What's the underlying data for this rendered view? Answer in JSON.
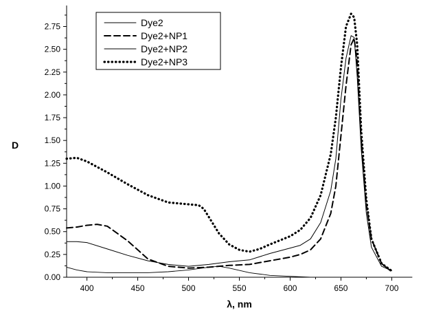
{
  "chart_data": {
    "type": "line",
    "title": "",
    "xlabel": "λ, nm",
    "ylabel": "D",
    "xlim": [
      380,
      720
    ],
    "ylim": [
      0,
      2.95
    ],
    "x_ticks": [
      400,
      450,
      500,
      550,
      600,
      650,
      700
    ],
    "y_ticks": [
      0.0,
      0.25,
      0.5,
      0.75,
      1.0,
      1.25,
      1.5,
      1.75,
      2.0,
      2.25,
      2.5,
      2.75
    ],
    "y_tick_labels": [
      "0.00",
      "0.25",
      "0.50",
      "0.75",
      "1.00",
      "1.25",
      "1.50",
      "1.75",
      "2.00",
      "2.25",
      "2.50",
      "2.75"
    ],
    "grid": false,
    "legend_position": "top-left",
    "series": [
      {
        "name": "Dye2",
        "style": "solid",
        "x": [
          380,
          390,
          400,
          420,
          440,
          460,
          480,
          500,
          520,
          530,
          540,
          560,
          580,
          600,
          620,
          640,
          660,
          680,
          700,
          720
        ],
        "y": [
          0.11,
          0.08,
          0.06,
          0.05,
          0.05,
          0.05,
          0.06,
          0.08,
          0.11,
          0.12,
          0.1,
          0.05,
          0.02,
          0.01,
          0.0,
          0.0,
          0.0,
          0.0,
          0.0,
          0.0
        ]
      },
      {
        "name": "Dye2+NP1",
        "style": "dash",
        "x": [
          380,
          390,
          400,
          410,
          420,
          440,
          460,
          480,
          500,
          520,
          540,
          560,
          580,
          600,
          610,
          620,
          630,
          640,
          645,
          650,
          655,
          660,
          663,
          666,
          670,
          675,
          680,
          690,
          700
        ],
        "y": [
          0.54,
          0.55,
          0.57,
          0.58,
          0.56,
          0.4,
          0.2,
          0.12,
          0.1,
          0.11,
          0.13,
          0.14,
          0.18,
          0.22,
          0.25,
          0.3,
          0.42,
          0.7,
          1.0,
          1.55,
          2.1,
          2.55,
          2.62,
          2.35,
          1.5,
          0.8,
          0.42,
          0.15,
          0.06
        ]
      },
      {
        "name": "Dye2+NP2",
        "style": "solid",
        "x": [
          380,
          390,
          400,
          420,
          440,
          460,
          480,
          500,
          520,
          540,
          560,
          580,
          600,
          610,
          620,
          630,
          640,
          645,
          650,
          655,
          660,
          663,
          666,
          670,
          675,
          680,
          690,
          700
        ],
        "y": [
          0.39,
          0.39,
          0.38,
          0.31,
          0.24,
          0.18,
          0.14,
          0.12,
          0.14,
          0.17,
          0.19,
          0.26,
          0.32,
          0.35,
          0.42,
          0.6,
          0.95,
          1.3,
          1.95,
          2.4,
          2.65,
          2.63,
          2.2,
          1.4,
          0.7,
          0.33,
          0.12,
          0.07
        ]
      },
      {
        "name": "Dye2+NP3",
        "style": "dot",
        "x": [
          380,
          390,
          400,
          420,
          440,
          460,
          480,
          500,
          510,
          515,
          520,
          530,
          540,
          550,
          560,
          570,
          580,
          600,
          610,
          620,
          630,
          640,
          645,
          650,
          655,
          660,
          663,
          666,
          670,
          675,
          680,
          690,
          700
        ],
        "y": [
          1.3,
          1.31,
          1.27,
          1.15,
          1.02,
          0.9,
          0.82,
          0.8,
          0.79,
          0.75,
          0.66,
          0.48,
          0.36,
          0.3,
          0.28,
          0.31,
          0.36,
          0.45,
          0.52,
          0.65,
          0.9,
          1.35,
          1.75,
          2.3,
          2.75,
          2.89,
          2.85,
          2.55,
          1.6,
          0.85,
          0.42,
          0.15,
          0.07
        ]
      }
    ]
  }
}
